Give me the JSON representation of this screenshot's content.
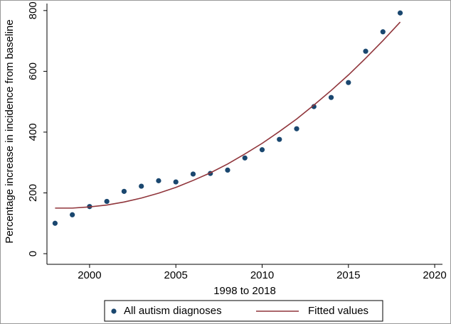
{
  "chart_data": {
    "type": "scatter",
    "x_label": "1998 to 2018",
    "y_label": "Percentage increase in incidence from baseline",
    "x": [
      1998,
      1999,
      2000,
      2001,
      2002,
      2003,
      2004,
      2005,
      2006,
      2007,
      2008,
      2009,
      2010,
      2011,
      2012,
      2013,
      2014,
      2015,
      2016,
      2017,
      2018
    ],
    "series": [
      {
        "name": "All autism diagnoses",
        "type": "scatter",
        "color": "#1a476f",
        "values": [
          100,
          128,
          155,
          172,
          205,
          222,
          240,
          236,
          262,
          264,
          275,
          315,
          342,
          376,
          411,
          484,
          514,
          563,
          666,
          730,
          792
        ]
      },
      {
        "name": "Fitted values",
        "type": "line",
        "color": "#90353b",
        "values": [
          150,
          150,
          154,
          160,
          170,
          183,
          199,
          218,
          241,
          266,
          295,
          328,
          363,
          402,
          443,
          489,
          537,
          588,
          643,
          701,
          762
        ]
      }
    ],
    "xlim": [
      1997.53,
      2020.45
    ],
    "xticks": [
      2000,
      2005,
      2010,
      2015,
      2020
    ],
    "ylim": [
      -35,
      823
    ],
    "yticks": [
      0,
      200,
      400,
      600,
      800
    ],
    "legend": "bottom"
  }
}
